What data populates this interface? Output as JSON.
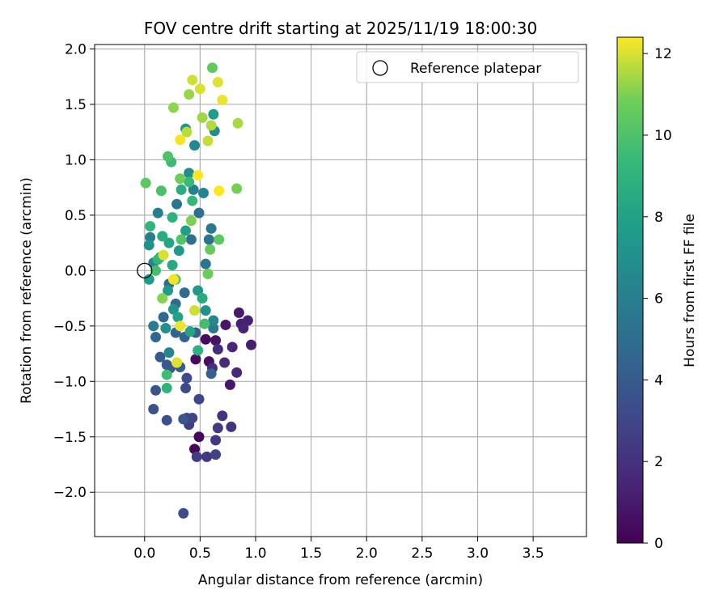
{
  "chart_data": {
    "type": "scatter",
    "title": "FOV centre drift starting at 2025/11/19 18:00:30",
    "xlabel": "Angular distance from reference (arcmin)",
    "ylabel": "Rotation from reference (arcmin)",
    "xlim": [
      -0.45,
      3.98
    ],
    "ylim": [
      -2.4,
      2.04
    ],
    "xticks": [
      0.0,
      0.5,
      1.0,
      1.5,
      2.0,
      2.5,
      3.0,
      3.5
    ],
    "xtick_labels": [
      "0.0",
      "0.5",
      "1.0",
      "1.5",
      "2.0",
      "2.5",
      "3.0",
      "3.5"
    ],
    "yticks": [
      2.0,
      1.5,
      1.0,
      0.5,
      0.0,
      -0.5,
      -1.0,
      -1.5,
      -2.0
    ],
    "ytick_labels": [
      "2.0",
      "1.5",
      "1.0",
      "0.5",
      "0.0",
      "−0.5",
      "−1.0",
      "−1.5",
      "−2.0"
    ],
    "grid": true,
    "legend": {
      "position": "top-right",
      "entries": [
        {
          "label": "Reference platepar",
          "marker": "open-circle"
        }
      ]
    },
    "reference_point": {
      "x": 0.0,
      "y": 0.0
    },
    "colorbar": {
      "label": "Hours from first FF file",
      "colormap": "viridis",
      "range": [
        0,
        12.4
      ],
      "ticks": [
        0,
        2,
        4,
        6,
        8,
        10,
        12
      ],
      "tick_labels": [
        "0",
        "2",
        "4",
        "6",
        "8",
        "10",
        "12"
      ]
    },
    "points": [
      {
        "x": 0.45,
        "y": -1.61,
        "h": 0.2
      },
      {
        "x": 0.49,
        "y": -1.5,
        "h": 0.3
      },
      {
        "x": 0.46,
        "y": -0.8,
        "h": 0.4
      },
      {
        "x": 0.55,
        "y": -0.62,
        "h": 0.5
      },
      {
        "x": 0.58,
        "y": -0.82,
        "h": 0.6
      },
      {
        "x": 0.64,
        "y": -0.63,
        "h": 0.7
      },
      {
        "x": 0.73,
        "y": -0.49,
        "h": 0.8
      },
      {
        "x": 0.77,
        "y": -1.03,
        "h": 0.9
      },
      {
        "x": 0.85,
        "y": -0.38,
        "h": 1.0
      },
      {
        "x": 0.96,
        "y": -0.67,
        "h": 1.1
      },
      {
        "x": 0.87,
        "y": -0.48,
        "h": 1.2
      },
      {
        "x": 0.93,
        "y": -0.45,
        "h": 1.3
      },
      {
        "x": 0.89,
        "y": -0.52,
        "h": 1.4
      },
      {
        "x": 0.79,
        "y": -0.69,
        "h": 1.5
      },
      {
        "x": 0.83,
        "y": -0.92,
        "h": 1.6
      },
      {
        "x": 0.72,
        "y": -0.83,
        "h": 1.7
      },
      {
        "x": 0.66,
        "y": -0.71,
        "h": 1.8
      },
      {
        "x": 0.61,
        "y": -0.88,
        "h": 1.9
      },
      {
        "x": 0.7,
        "y": -1.31,
        "h": 2.0
      },
      {
        "x": 0.78,
        "y": -1.41,
        "h": 2.1
      },
      {
        "x": 0.56,
        "y": -1.68,
        "h": 2.2
      },
      {
        "x": 0.64,
        "y": -1.53,
        "h": 2.3
      },
      {
        "x": 0.66,
        "y": -1.42,
        "h": 2.4
      },
      {
        "x": 0.47,
        "y": -1.68,
        "h": 2.5
      },
      {
        "x": 0.4,
        "y": -1.39,
        "h": 2.6
      },
      {
        "x": 0.38,
        "y": -1.33,
        "h": 2.7
      },
      {
        "x": 0.64,
        "y": -1.66,
        "h": 2.8
      },
      {
        "x": 0.43,
        "y": -1.33,
        "h": 2.9
      },
      {
        "x": 0.49,
        "y": -1.16,
        "h": 3.0
      },
      {
        "x": 0.37,
        "y": -1.06,
        "h": 3.1
      },
      {
        "x": 0.38,
        "y": -0.97,
        "h": 3.2
      },
      {
        "x": 0.35,
        "y": -2.19,
        "h": 3.3
      },
      {
        "x": 0.2,
        "y": -1.35,
        "h": 3.4
      },
      {
        "x": 0.08,
        "y": -1.25,
        "h": 3.5
      },
      {
        "x": 0.1,
        "y": -1.08,
        "h": 3.6
      },
      {
        "x": 0.35,
        "y": -1.34,
        "h": 3.7
      },
      {
        "x": 0.23,
        "y": -0.88,
        "h": 3.8
      },
      {
        "x": 0.14,
        "y": -0.78,
        "h": 3.9
      },
      {
        "x": 0.2,
        "y": -0.85,
        "h": 4.0
      },
      {
        "x": 0.32,
        "y": -0.87,
        "h": 4.1
      },
      {
        "x": 0.46,
        "y": -0.56,
        "h": 4.2
      },
      {
        "x": 0.6,
        "y": -0.93,
        "h": 4.3
      },
      {
        "x": 0.36,
        "y": -0.6,
        "h": 4.4
      },
      {
        "x": 0.28,
        "y": -0.56,
        "h": 4.5
      },
      {
        "x": 0.1,
        "y": -0.6,
        "h": 4.6
      },
      {
        "x": 0.17,
        "y": -0.42,
        "h": 4.7
      },
      {
        "x": 0.28,
        "y": -0.3,
        "h": 4.8
      },
      {
        "x": 0.36,
        "y": -0.2,
        "h": 4.9
      },
      {
        "x": 0.22,
        "y": -0.12,
        "h": 5.0
      },
      {
        "x": 0.42,
        "y": 0.28,
        "h": 5.1
      },
      {
        "x": 0.49,
        "y": 0.52,
        "h": 5.2
      },
      {
        "x": 0.58,
        "y": 0.28,
        "h": 5.3
      },
      {
        "x": 0.55,
        "y": 0.06,
        "h": 5.4
      },
      {
        "x": 0.29,
        "y": 0.6,
        "h": 5.5
      },
      {
        "x": 0.6,
        "y": 0.38,
        "h": 5.6
      },
      {
        "x": 0.62,
        "y": -0.52,
        "h": 5.7
      },
      {
        "x": 0.08,
        "y": -0.5,
        "h": 5.8
      },
      {
        "x": 0.05,
        "y": 0.3,
        "h": 5.9
      },
      {
        "x": 0.12,
        "y": 0.52,
        "h": 6.0
      },
      {
        "x": 0.44,
        "y": 0.73,
        "h": 6.1
      },
      {
        "x": 0.53,
        "y": 0.7,
        "h": 6.2
      },
      {
        "x": 0.22,
        "y": -0.74,
        "h": 6.3
      },
      {
        "x": 0.08,
        "y": 0.07,
        "h": 6.4
      },
      {
        "x": 0.62,
        "y": -0.45,
        "h": 6.5
      },
      {
        "x": 0.45,
        "y": 1.13,
        "h": 6.6
      },
      {
        "x": 0.63,
        "y": 1.26,
        "h": 6.7
      },
      {
        "x": 0.4,
        "y": 0.88,
        "h": 6.8
      },
      {
        "x": 0.19,
        "y": -0.52,
        "h": 6.9
      },
      {
        "x": 0.55,
        "y": -0.36,
        "h": 7.0
      },
      {
        "x": 0.04,
        "y": 0.23,
        "h": 7.1
      },
      {
        "x": 0.26,
        "y": -0.35,
        "h": 7.2
      },
      {
        "x": 0.37,
        "y": 1.28,
        "h": 7.3
      },
      {
        "x": 0.31,
        "y": 0.18,
        "h": 7.4
      },
      {
        "x": 0.48,
        "y": -0.18,
        "h": 7.5
      },
      {
        "x": 0.21,
        "y": -0.18,
        "h": 7.6
      },
      {
        "x": 0.04,
        "y": -0.08,
        "h": 7.7
      },
      {
        "x": 0.62,
        "y": 1.41,
        "h": 7.8
      },
      {
        "x": 0.37,
        "y": 0.36,
        "h": 7.9
      },
      {
        "x": 0.3,
        "y": -0.42,
        "h": 8.0
      },
      {
        "x": 0.41,
        "y": -0.55,
        "h": 8.1
      },
      {
        "x": 0.22,
        "y": 0.25,
        "h": 8.2
      },
      {
        "x": 0.14,
        "y": 0.12,
        "h": 8.3
      },
      {
        "x": 0.25,
        "y": 0.05,
        "h": 8.4
      },
      {
        "x": 0.52,
        "y": -0.25,
        "h": 8.5
      },
      {
        "x": 0.16,
        "y": 0.31,
        "h": 8.6
      },
      {
        "x": 0.33,
        "y": 0.73,
        "h": 8.7
      },
      {
        "x": 0.48,
        "y": -0.72,
        "h": 8.8
      },
      {
        "x": 0.25,
        "y": 0.48,
        "h": 8.9
      },
      {
        "x": 0.2,
        "y": -1.06,
        "h": 9.0
      },
      {
        "x": 0.05,
        "y": 0.4,
        "h": 9.1
      },
      {
        "x": 0.12,
        "y": 0.1,
        "h": 9.2
      },
      {
        "x": 0.43,
        "y": 0.63,
        "h": 9.3
      },
      {
        "x": 0.4,
        "y": 0.8,
        "h": 9.4
      },
      {
        "x": 0.24,
        "y": 0.98,
        "h": 9.5
      },
      {
        "x": 0.2,
        "y": -0.94,
        "h": 9.6
      },
      {
        "x": 0.54,
        "y": -0.48,
        "h": 9.7
      },
      {
        "x": 0.1,
        "y": 0.0,
        "h": 9.8
      },
      {
        "x": 0.15,
        "y": 0.72,
        "h": 9.9
      },
      {
        "x": 0.21,
        "y": 1.03,
        "h": 10.0
      },
      {
        "x": 0.33,
        "y": 0.28,
        "h": 10.1
      },
      {
        "x": 0.28,
        "y": -0.08,
        "h": 10.2
      },
      {
        "x": 0.01,
        "y": 0.79,
        "h": 10.3
      },
      {
        "x": 0.67,
        "y": 0.28,
        "h": 10.4
      },
      {
        "x": 0.61,
        "y": 1.83,
        "h": 10.5
      },
      {
        "x": 0.59,
        "y": 0.19,
        "h": 10.6
      },
      {
        "x": 0.57,
        "y": -0.03,
        "h": 10.7
      },
      {
        "x": 0.32,
        "y": 0.83,
        "h": 10.8
      },
      {
        "x": 0.83,
        "y": 0.74,
        "h": 10.9
      },
      {
        "x": 0.42,
        "y": 0.45,
        "h": 11.0
      },
      {
        "x": 0.16,
        "y": -0.25,
        "h": 11.1
      },
      {
        "x": 0.26,
        "y": 1.47,
        "h": 11.2
      },
      {
        "x": 0.4,
        "y": 1.59,
        "h": 11.3
      },
      {
        "x": 0.52,
        "y": 1.38,
        "h": 11.4
      },
      {
        "x": 0.84,
        "y": 1.33,
        "h": 11.5
      },
      {
        "x": 0.6,
        "y": 1.31,
        "h": 11.6
      },
      {
        "x": 0.38,
        "y": 1.25,
        "h": 11.7
      },
      {
        "x": 0.57,
        "y": 1.17,
        "h": 11.8
      },
      {
        "x": 0.43,
        "y": 1.72,
        "h": 11.9
      },
      {
        "x": 0.5,
        "y": 1.64,
        "h": 12.0
      },
      {
        "x": 0.66,
        "y": 1.7,
        "h": 12.1
      },
      {
        "x": 0.7,
        "y": 1.54,
        "h": 12.2
      },
      {
        "x": 0.32,
        "y": 1.18,
        "h": 12.3
      },
      {
        "x": 0.48,
        "y": 0.86,
        "h": 12.4
      },
      {
        "x": 0.67,
        "y": 0.72,
        "h": 12.4
      },
      {
        "x": 0.26,
        "y": -0.08,
        "h": 12.3
      },
      {
        "x": 0.32,
        "y": -0.5,
        "h": 12.2
      },
      {
        "x": 0.29,
        "y": -0.83,
        "h": 12.1
      },
      {
        "x": 0.17,
        "y": 0.14,
        "h": 12.0
      },
      {
        "x": 0.45,
        "y": -0.36,
        "h": 11.9
      }
    ]
  }
}
